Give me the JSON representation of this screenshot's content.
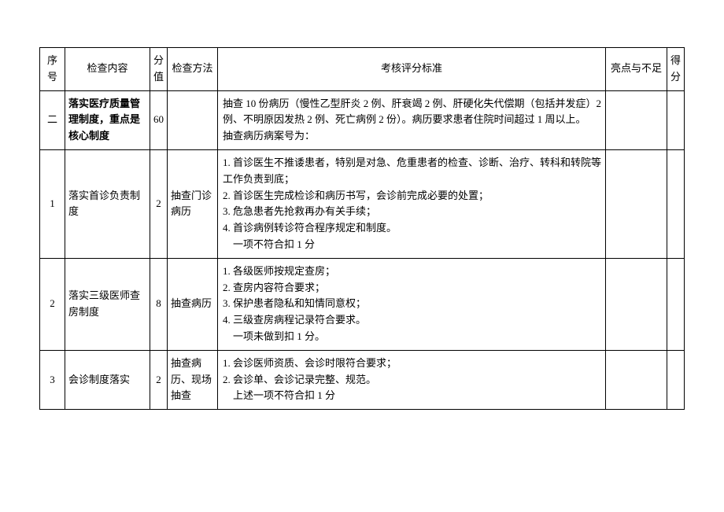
{
  "headers": {
    "seq": "序号",
    "content": "检查内容",
    "score": "分值",
    "method": "检查方法",
    "standard": "考核评分标准",
    "highlight": "亮点与不足",
    "got": "得分"
  },
  "rows": [
    {
      "seq": "二",
      "content": "落实医疗质量管理制度，重点是核心制度",
      "score": "60",
      "method": "",
      "standard": "抽查 10 份病历（慢性乙型肝炎 2 例、肝衰竭 2 例、肝硬化失代偿期（包括并发症）2 例、不明原因发热 2 例、死亡病例 2 份）。病历要求患者住院时间超过 1 周以上。\n抽查病历病案号为：",
      "highlight": "",
      "got": "",
      "bold_content": true
    },
    {
      "seq": "1",
      "content": "落实首诊负责制度",
      "score": "2",
      "method": "抽查门诊病历",
      "standard": "1. 首诊医生不推诿患者，特别是对急、危重患者的检查、诊断、治疗、转科和转院等工作负责到底；\n2. 首诊医生完成检诊和病历书写，会诊前完成必要的处置；\n3. 危急患者先抢救再办有关手续；\n4. 首诊病例转诊符合程序规定和制度。\n　一项不符合扣 1 分",
      "highlight": "",
      "got": ""
    },
    {
      "seq": "2",
      "content": "落实三级医师查房制度",
      "score": "8",
      "method": "抽查病历",
      "standard": "1. 各级医师按规定查房；\n2. 查房内容符合要求；\n3. 保护患者隐私和知情同意权；\n4. 三级查房病程记录符合要求。\n　一项未做到扣 1 分。",
      "highlight": "",
      "got": ""
    },
    {
      "seq": "3",
      "content": "会诊制度落实",
      "score": "2",
      "method": "抽查病历、现场抽查",
      "standard": "1. 会诊医师资质、会诊时限符合要求；\n2. 会诊单、会诊记录完整、规范。\n　上述一项不符合扣 1 分",
      "highlight": "",
      "got": ""
    }
  ]
}
